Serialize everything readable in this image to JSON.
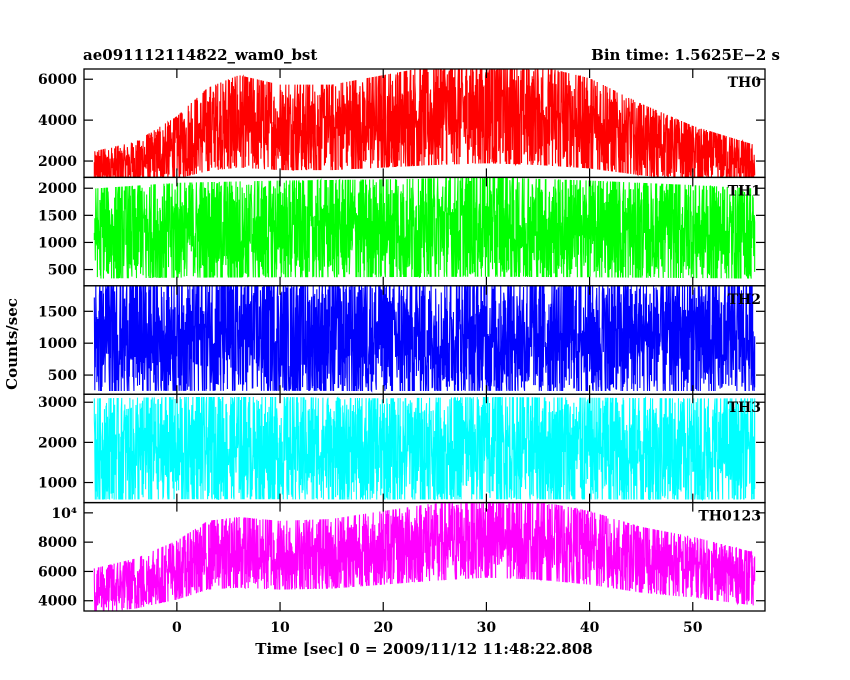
{
  "header": {
    "left_title": "ae091112114822_wam0_bst",
    "right_title": "Bin time: 1.5625E−2 s"
  },
  "chart_data": {
    "type": "line",
    "xlabel": "Time [sec] 0 = 2009/11/12 11:48:22.808",
    "ylabel": "Counts/sec",
    "xlim": [
      -9,
      57
    ],
    "x_range": [
      -8,
      56
    ],
    "x_ticks": [
      {
        "value": 0,
        "label": "0"
      },
      {
        "value": 10,
        "label": "10"
      },
      {
        "value": 20,
        "label": "20"
      },
      {
        "value": 30,
        "label": "30"
      },
      {
        "value": 40,
        "label": "40"
      },
      {
        "value": 50,
        "label": "50"
      }
    ],
    "panels": [
      {
        "name": "TH0",
        "color": "#ff0000",
        "ylim": [
          1200,
          6500
        ],
        "y_ticks": [
          {
            "value": 2000,
            "label": "2000"
          },
          {
            "value": 4000,
            "label": "4000"
          },
          {
            "value": 6000,
            "label": "6000"
          }
        ],
        "envelope": {
          "x": [
            -8,
            -4,
            0,
            3,
            6,
            10,
            15,
            20,
            25,
            30,
            35,
            40,
            45,
            50,
            56
          ],
          "y": [
            1600,
            1900,
            2700,
            3600,
            4000,
            3700,
            3700,
            4000,
            4300,
            4500,
            4300,
            3900,
            3100,
            2400,
            1800
          ]
        },
        "spread": [
          0.42,
          1.55
        ]
      },
      {
        "name": "TH1",
        "color": "#00ff00",
        "ylim": [
          200,
          2200
        ],
        "y_ticks": [
          {
            "value": 500,
            "label": "500"
          },
          {
            "value": 1000,
            "label": "1000"
          },
          {
            "value": 1500,
            "label": "1500"
          },
          {
            "value": 2000,
            "label": "2000"
          }
        ],
        "envelope": {
          "x": [
            -8,
            0,
            10,
            20,
            30,
            40,
            50,
            56
          ],
          "y": [
            950,
            1000,
            1020,
            1030,
            1050,
            1020,
            980,
            950
          ]
        },
        "spread": [
          0.35,
          2.1
        ]
      },
      {
        "name": "TH2",
        "color": "#0000ff",
        "ylim": [
          200,
          1900
        ],
        "y_ticks": [
          {
            "value": 500,
            "label": "500"
          },
          {
            "value": 1000,
            "label": "1000"
          },
          {
            "value": 1500,
            "label": "1500"
          }
        ],
        "envelope": {
          "x": [
            -8,
            0,
            10,
            20,
            30,
            40,
            50,
            56
          ],
          "y": [
            1000,
            1010,
            1010,
            1000,
            1010,
            1000,
            1000,
            1000
          ]
        },
        "spread": [
          0.25,
          1.95
        ]
      },
      {
        "name": "TH3",
        "color": "#00ffff",
        "ylim": [
          500,
          3200
        ],
        "y_ticks": [
          {
            "value": 1000,
            "label": "1000"
          },
          {
            "value": 2000,
            "label": "2000"
          },
          {
            "value": 3000,
            "label": "3000"
          }
        ],
        "envelope": {
          "x": [
            -8,
            0,
            10,
            20,
            30,
            40,
            50,
            56
          ],
          "y": [
            1800,
            1820,
            1820,
            1800,
            1820,
            1810,
            1800,
            1800
          ]
        },
        "spread": [
          0.32,
          1.72
        ]
      },
      {
        "name": "TH0123",
        "color": "#ff00ff",
        "ylim": [
          3300,
          10700
        ],
        "y_ticks": [
          {
            "value": 4000,
            "label": "4000"
          },
          {
            "value": 6000,
            "label": "6000"
          },
          {
            "value": 8000,
            "label": "8000"
          },
          {
            "value": 10000,
            "label": "10⁴"
          }
        ],
        "envelope": {
          "x": [
            -8,
            -4,
            0,
            3,
            6,
            10,
            15,
            20,
            25,
            30,
            35,
            40,
            45,
            50,
            56
          ],
          "y": [
            4600,
            5100,
            6000,
            7000,
            7200,
            7000,
            7100,
            7500,
            7900,
            8200,
            8000,
            7500,
            6700,
            6200,
            5400
          ]
        },
        "spread": [
          0.68,
          1.35
        ]
      }
    ]
  }
}
